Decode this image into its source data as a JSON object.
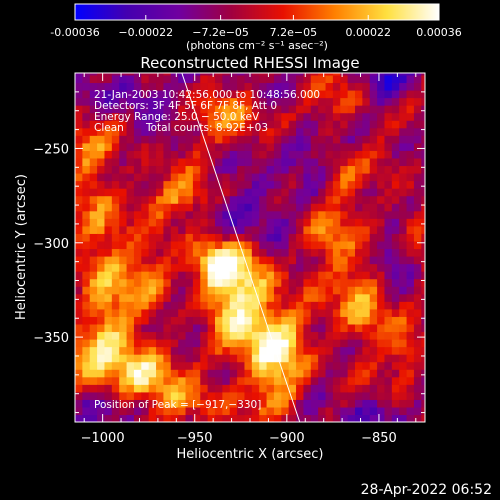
{
  "chart_data": {
    "type": "heatmap",
    "title": "Reconstructed RHESSI Image",
    "xlabel": "Heliocentric X (arcsec)",
    "ylabel": "Heliocentric Y (arcsec)",
    "xlim": [
      -1015,
      -825
    ],
    "ylim": [
      -395,
      -210
    ],
    "x_ticks": [
      -1000,
      -950,
      -900,
      -850
    ],
    "x_tick_labels": [
      "−1000",
      "−950",
      "−900",
      "−850"
    ],
    "y_ticks": [
      -250,
      -300,
      -350
    ],
    "y_tick_labels": [
      "−250",
      "−300",
      "−350"
    ],
    "colorbar": {
      "range": [
        -0.00036,
        0.00036
      ],
      "ticks": [
        -0.00036,
        -0.00022,
        -7.2e-05,
        7.2e-05,
        0.00022,
        0.00036
      ],
      "tick_labels": [
        "-0.00036",
        "−0.00022",
        "−7.2e−05",
        "7.2e−05",
        "0.00022",
        "0.00036"
      ],
      "unit_label": "(photons cm⁻² s⁻¹ asec⁻²)",
      "colormap": [
        "#0000ff",
        "#4400b0",
        "#7000a0",
        "#a00040",
        "#e81000",
        "#ff8000",
        "#ffe040",
        "#ffffff"
      ]
    },
    "annotations": {
      "line1": "21-Jan-2003 10:42:56.000 to 10:48:56.000",
      "line2": "Detectors: 3F 4F 5F 6F 7F 8F, Att 0",
      "line3": "Energy Range: 25.0 − 50.0 keV",
      "line4_left": "Clean",
      "line4_right": "Total counts: 8.92E+03",
      "peak": "Position of Peak = [−917,−330]"
    },
    "peak_position": [
      -917,
      -330
    ],
    "limb_line": [
      [
        -957,
        -210
      ],
      [
        -893,
        -395
      ]
    ],
    "hotspots": [
      {
        "x": -925,
        "y": -330,
        "a": 1.0,
        "sx": 14,
        "sy": 22
      },
      {
        "x": -905,
        "y": -355,
        "a": 0.8,
        "sx": 12,
        "sy": 14
      },
      {
        "x": -940,
        "y": -310,
        "a": 0.7,
        "sx": 10,
        "sy": 10
      },
      {
        "x": -860,
        "y": -330,
        "a": 0.75,
        "sx": 10,
        "sy": 16
      },
      {
        "x": -1000,
        "y": -305,
        "a": 0.65,
        "sx": 10,
        "sy": 28
      },
      {
        "x": -995,
        "y": -360,
        "a": 0.7,
        "sx": 18,
        "sy": 16
      },
      {
        "x": -975,
        "y": -370,
        "a": 0.6,
        "sx": 10,
        "sy": 10
      },
      {
        "x": -955,
        "y": -275,
        "a": 0.55,
        "sx": 16,
        "sy": 8
      },
      {
        "x": -975,
        "y": -320,
        "a": 0.55,
        "sx": 10,
        "sy": 10
      },
      {
        "x": -930,
        "y": -235,
        "a": 0.5,
        "sx": 12,
        "sy": 10
      },
      {
        "x": -880,
        "y": -295,
        "a": 0.55,
        "sx": 10,
        "sy": 10
      },
      {
        "x": -870,
        "y": -265,
        "a": 0.45,
        "sx": 8,
        "sy": 10
      },
      {
        "x": -835,
        "y": -360,
        "a": 0.45,
        "sx": 8,
        "sy": 10
      },
      {
        "x": -905,
        "y": -380,
        "a": 0.45,
        "sx": 10,
        "sy": 8
      },
      {
        "x": -1010,
        "y": -250,
        "a": 0.45,
        "sx": 8,
        "sy": 10
      },
      {
        "x": -950,
        "y": -385,
        "a": 0.45,
        "sx": 12,
        "sy": 8
      },
      {
        "x": -870,
        "y": -225,
        "a": 0.4,
        "sx": 12,
        "sy": 8
      },
      {
        "x": -830,
        "y": -290,
        "a": 0.4,
        "sx": 8,
        "sy": 10
      }
    ],
    "lows": [
      {
        "x": -920,
        "y": -285,
        "a": -0.6,
        "sx": 14,
        "sy": 14
      },
      {
        "x": -845,
        "y": -215,
        "a": -0.6,
        "sx": 10,
        "sy": 8
      },
      {
        "x": -1005,
        "y": -390,
        "a": -0.5,
        "sx": 8,
        "sy": 8
      },
      {
        "x": -950,
        "y": -345,
        "a": -0.4,
        "sx": 8,
        "sy": 8
      },
      {
        "x": -855,
        "y": -390,
        "a": -0.45,
        "sx": 8,
        "sy": 6
      },
      {
        "x": -985,
        "y": -220,
        "a": -0.45,
        "sx": 12,
        "sy": 8
      },
      {
        "x": -840,
        "y": -310,
        "a": -0.4,
        "sx": 8,
        "sy": 8
      },
      {
        "x": -890,
        "y": -250,
        "a": -0.4,
        "sx": 10,
        "sy": 10
      }
    ]
  },
  "footer": {
    "date": "28-Apr-2022 06:52"
  }
}
